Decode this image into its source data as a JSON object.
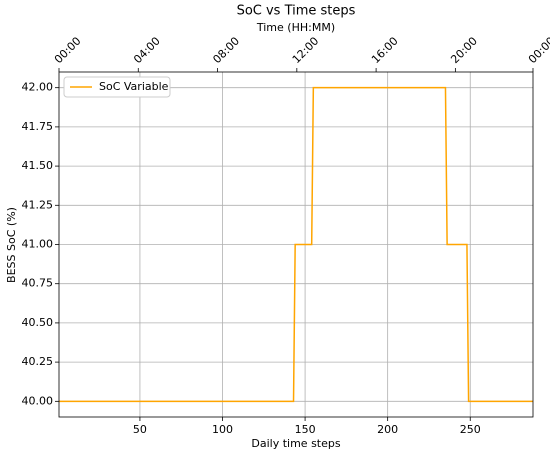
{
  "chart_data": {
    "type": "line",
    "title": "SoC vs Time steps",
    "x2label": "Time (HH:MM)",
    "xlabel": "Daily time steps",
    "ylabel": "BESS SoC (%)",
    "series": [
      {
        "name": "SoC Variable",
        "color": "#ffa500",
        "x": [
          1,
          143,
          144,
          154,
          155,
          235,
          236,
          248,
          249,
          288
        ],
        "values": [
          40,
          40,
          41,
          41,
          42,
          42,
          41,
          41,
          40,
          40
        ]
      }
    ],
    "xlim": [
      1,
      288
    ],
    "xticks": [
      50,
      100,
      150,
      200,
      250
    ],
    "x2ticks": [
      {
        "value": 1,
        "label": "00:00"
      },
      {
        "value": 49,
        "label": "04:00"
      },
      {
        "value": 97,
        "label": "08:00"
      },
      {
        "value": 145,
        "label": "12:00"
      },
      {
        "value": 193,
        "label": "16:00"
      },
      {
        "value": 241,
        "label": "20:00"
      },
      {
        "value": 288,
        "label": "00:00"
      }
    ],
    "ylim": [
      39.9,
      42.1
    ],
    "yticks": [
      {
        "value": 40,
        "label": "40.00"
      },
      {
        "value": 40.25,
        "label": "40.25"
      },
      {
        "value": 40.5,
        "label": "40.50"
      },
      {
        "value": 40.75,
        "label": "40.75"
      },
      {
        "value": 41,
        "label": "41.00"
      },
      {
        "value": 41.25,
        "label": "41.25"
      },
      {
        "value": 41.5,
        "label": "41.50"
      },
      {
        "value": 41.75,
        "label": "41.75"
      },
      {
        "value": 42,
        "label": "42.00"
      }
    ],
    "grid": true,
    "legend": "upper-left"
  }
}
